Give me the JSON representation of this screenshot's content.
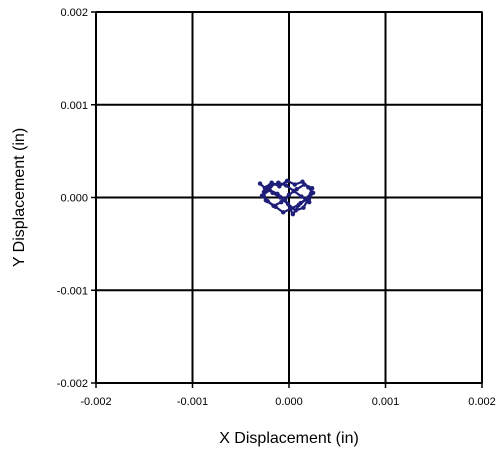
{
  "chart_data": {
    "type": "scatter",
    "title": "",
    "xlabel": "X Displacement (in)",
    "ylabel": "Y Displacement (in)",
    "xlim": [
      -0.002,
      0.002
    ],
    "ylim": [
      -0.002,
      0.002
    ],
    "x_ticks": [
      -0.002,
      -0.001,
      0.0,
      0.001,
      0.002
    ],
    "y_ticks": [
      -0.002,
      -0.001,
      0.0,
      0.001,
      0.002
    ],
    "x_tick_labels": [
      "-0.002",
      "-0.001",
      "0.000",
      "0.001",
      "0.002"
    ],
    "y_tick_labels": [
      "-0.002",
      "-0.001",
      "0.000",
      "0.001",
      "0.002"
    ],
    "grid": true,
    "legend": "none",
    "series_color": "#1f1f7a",
    "series": [
      {
        "x": [
          -0.0003,
          -0.00025,
          -0.00018,
          -0.0001,
          -2e-05,
          6e-05,
          0.00014,
          0.0002,
          0.00025,
          0.00018,
          0.0001,
          2e-05,
          -6e-05,
          -0.00014,
          -0.00022,
          -0.00028,
          -0.0002,
          -0.00012,
          -4e-05,
          4e-05,
          0.00012,
          0.0002,
          0.00024,
          0.00016,
          8e-05,
          0.0,
          -8e-05,
          -0.00016,
          -0.00024,
          -0.00026,
          -0.00019,
          -0.00011,
          -3e-05,
          5e-05,
          0.00013,
          0.00021,
          0.00023,
          0.00015,
          7e-05,
          -1e-05,
          -9e-05,
          -0.00017,
          -0.00023
        ],
        "y": [
          0.00015,
          0.0001,
          0.00016,
          0.00012,
          0.00018,
          0.00014,
          0.00017,
          0.00011,
          5e-05,
          -2e-05,
          -8e-05,
          -0.00012,
          -0.00016,
          -0.0001,
          -4e-05,
          2e-05,
          8e-05,
          4e-05,
          -2e-05,
          -0.00018,
          -6e-05,
          0.0,
          0.0001,
          0.00014,
          9e-05,
          3e-05,
          -5e-05,
          -9e-05,
          -3e-05,
          6e-05,
          0.00012,
          0.00016,
          0.00013,
          7e-05,
          1e-05,
          -5e-05,
          4e-05,
          -0.00011,
          -0.00014,
          -7e-05,
          0.0,
          5e-05,
          0.00011
        ]
      }
    ]
  }
}
